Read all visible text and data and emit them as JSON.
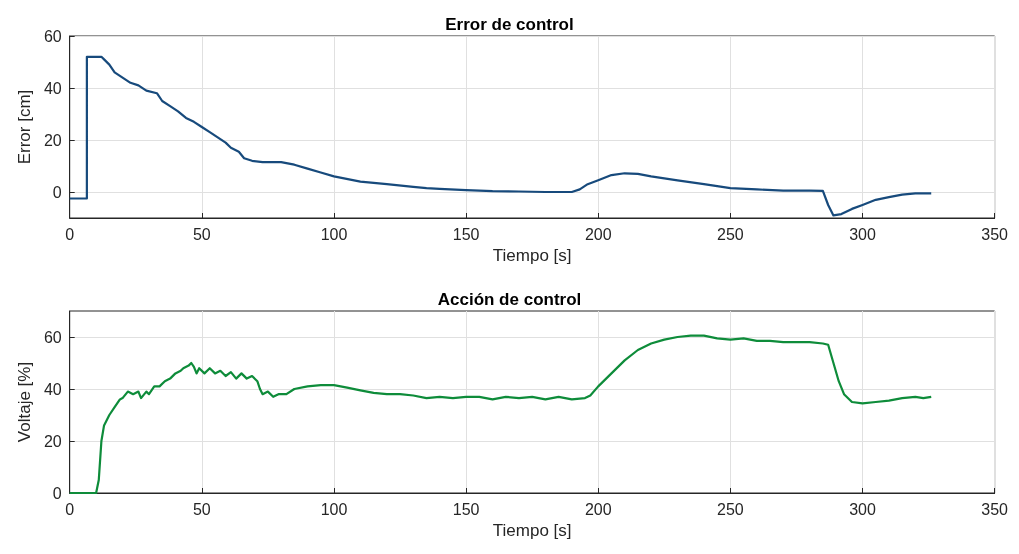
{
  "chart_data": [
    {
      "type": "line",
      "title": "Error de control",
      "xlabel": "Tiempo [s]",
      "ylabel": "Error [cm]",
      "xlim": [
        0,
        350
      ],
      "xticks": [
        0,
        50,
        100,
        150,
        200,
        250,
        300,
        350
      ],
      "ylim": [
        -10,
        60
      ],
      "yticks": [
        0,
        20,
        40,
        60
      ],
      "grid": true,
      "marker": "none",
      "x": [
        0,
        6.5,
        6.5,
        12,
        13,
        15,
        17,
        20,
        23,
        26,
        29,
        33,
        35,
        38,
        41,
        44,
        47,
        50,
        53,
        56,
        59,
        61,
        64,
        66,
        69,
        73,
        80,
        85,
        90,
        95,
        100,
        110,
        120,
        130,
        135,
        140,
        150,
        160,
        170,
        180,
        185,
        190,
        193,
        196,
        200,
        205,
        210,
        215,
        220,
        230,
        240,
        250,
        260,
        270,
        280,
        285,
        287,
        289,
        292,
        296,
        300,
        305,
        310,
        315,
        320,
        326
      ],
      "series": [
        {
          "color": "#174a7c",
          "values": [
            -2.5,
            -2.5,
            52,
            52,
            51,
            49,
            46,
            44,
            42,
            41,
            39,
            38,
            35,
            33,
            31,
            28.5,
            27,
            25,
            23,
            21,
            19,
            17,
            15.5,
            13,
            12,
            11.5,
            11.5,
            10.5,
            9,
            7.5,
            6,
            4,
            3,
            2,
            1.5,
            1.2,
            0.7,
            0.3,
            0.2,
            0,
            0,
            0,
            1,
            3,
            4.5,
            6.5,
            7.2,
            7,
            6,
            4.5,
            3,
            1.5,
            1,
            0.5,
            0.5,
            0.4,
            -5,
            -9,
            -8.5,
            -6.5,
            -5,
            -3,
            -2,
            -1,
            -0.5,
            -0.5
          ]
        }
      ]
    },
    {
      "type": "line",
      "title": "Acción de control",
      "xlabel": "Tiempo [s]",
      "ylabel": "Voltaje [%]",
      "xlim": [
        0,
        350
      ],
      "xticks": [
        0,
        50,
        100,
        150,
        200,
        250,
        300,
        350
      ],
      "ylim": [
        0,
        70
      ],
      "yticks": [
        0,
        20,
        40,
        60
      ],
      "grid": true,
      "marker": "none",
      "x": [
        0,
        10,
        11,
        12,
        13,
        15,
        17,
        19,
        20,
        22,
        24,
        26,
        27,
        29,
        30,
        32,
        34,
        36,
        38,
        40,
        42,
        43,
        45,
        46,
        47,
        48,
        49,
        51,
        53,
        55,
        57,
        59,
        61,
        63,
        65,
        67,
        69,
        71,
        72,
        73,
        75,
        77,
        79,
        82,
        85,
        90,
        95,
        100,
        105,
        110,
        115,
        120,
        125,
        130,
        135,
        140,
        145,
        150,
        155,
        160,
        165,
        170,
        175,
        180,
        185,
        190,
        195,
        197,
        200,
        205,
        210,
        215,
        220,
        225,
        230,
        235,
        240,
        245,
        250,
        255,
        260,
        265,
        270,
        275,
        280,
        285,
        287,
        289,
        291,
        293,
        296,
        300,
        305,
        310,
        315,
        320,
        323,
        326
      ],
      "series": [
        {
          "color": "#0e8c3a",
          "values": [
            0,
            0,
            5,
            20,
            26,
            30,
            33,
            36,
            36.5,
            39,
            38,
            39,
            36.5,
            39,
            38,
            41,
            41,
            43,
            44,
            46,
            47,
            48,
            49,
            50,
            48.5,
            46,
            48,
            46,
            48,
            46,
            47,
            45,
            46.5,
            44,
            46,
            44,
            45,
            43,
            40,
            38,
            39,
            37,
            38,
            38,
            40,
            41,
            41.5,
            41.5,
            40.5,
            39.5,
            38.5,
            38,
            38,
            37.5,
            36.5,
            37,
            36.5,
            37,
            37,
            36,
            37,
            36.5,
            37,
            36,
            37,
            36,
            36.5,
            37.5,
            41,
            46,
            51,
            55,
            57.5,
            59,
            60,
            60.5,
            60.5,
            59.5,
            59,
            59.5,
            58.5,
            58.5,
            58,
            58,
            58,
            57.5,
            57,
            50,
            43,
            38,
            35,
            34.5,
            35,
            35.5,
            36.5,
            37,
            36.5,
            37
          ]
        }
      ]
    }
  ]
}
